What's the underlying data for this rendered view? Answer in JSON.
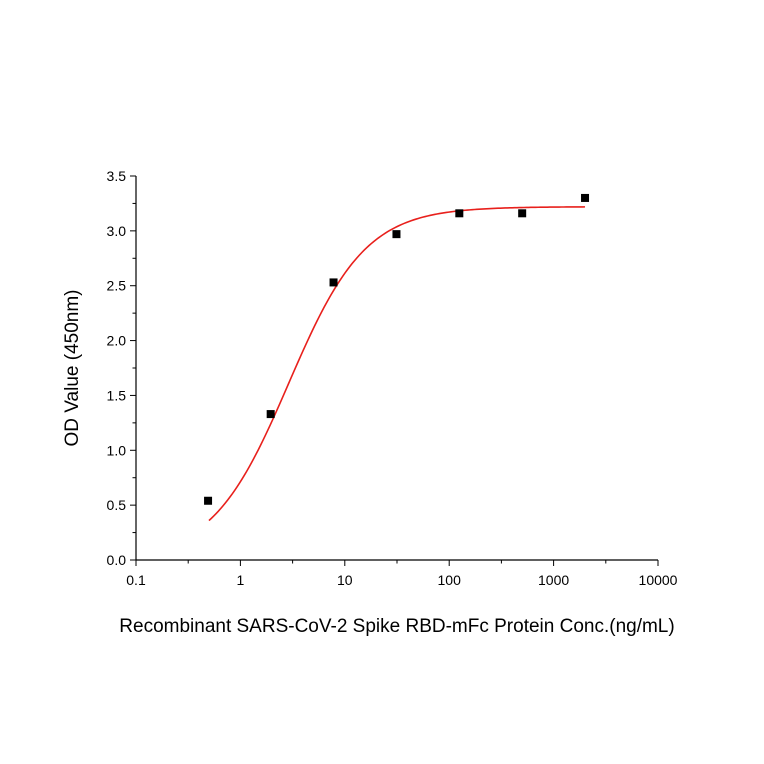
{
  "chart_data": {
    "type": "scatter",
    "title": "",
    "xlabel": "Recombinant SARS-CoV-2 Spike RBD-mFc Protein Conc.(ng/mL)",
    "ylabel": "OD Value (450nm)",
    "xscale": "log",
    "xlim": [
      0.1,
      10000
    ],
    "ylim": [
      0.0,
      3.5
    ],
    "xticks": [
      "0.1",
      "1",
      "10",
      "100",
      "1000",
      "10000"
    ],
    "yticks": [
      "0.0",
      "0.5",
      "1.0",
      "1.5",
      "2.0",
      "2.5",
      "3.0",
      "3.5"
    ],
    "grid": false,
    "legend": "none",
    "series": [
      {
        "kind": "points",
        "color": "#000000",
        "x": [
          0.49,
          1.95,
          7.8,
          31.25,
          125,
          500,
          2000
        ],
        "y": [
          0.54,
          1.33,
          2.53,
          2.97,
          3.16,
          3.16,
          3.3
        ]
      },
      {
        "kind": "fit",
        "color": "#e8201c",
        "model": "4PL",
        "params": {
          "bottom": 0.0,
          "top": 3.22,
          "ec50": 2.9,
          "hill": 1.18
        },
        "x_range": [
          0.5,
          2000
        ]
      }
    ]
  }
}
